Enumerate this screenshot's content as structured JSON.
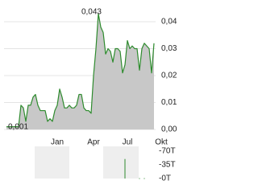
{
  "chart_data": [
    {
      "type": "line",
      "categories": [
        null,
        null,
        null,
        null,
        null,
        null,
        null,
        null,
        null,
        null,
        null,
        null,
        null,
        null,
        null,
        null,
        null,
        null,
        null,
        null,
        null,
        "Jan",
        null,
        null,
        null,
        null,
        null,
        null,
        null,
        null,
        null,
        null,
        null,
        null,
        null,
        null,
        "Apr",
        null,
        null,
        null,
        null,
        null,
        null,
        null,
        null,
        null,
        null,
        null,
        null,
        null,
        "Jul",
        null,
        null,
        null,
        null,
        null,
        null,
        null,
        null,
        null,
        null,
        null,
        null,
        null,
        "Okt",
        null
      ],
      "values": [
        0.001,
        0.001,
        0.001,
        0.001,
        0.001,
        0.001,
        0.009,
        0.008,
        0.003,
        0.009,
        0.009,
        0.012,
        0.013,
        0.009,
        0.007,
        0.007,
        0.007,
        0.003,
        0.004,
        0.003,
        0.007,
        0.009,
        0.015,
        0.012,
        0.008,
        0.008,
        0.009,
        0.008,
        0.008,
        0.009,
        0.013,
        0.013,
        0.008,
        0.007,
        0.007,
        0.006,
        0.02,
        0.03,
        0.043,
        0.038,
        0.036,
        0.028,
        0.03,
        0.029,
        0.025,
        0.03,
        0.03,
        0.029,
        0.021,
        0.024,
        0.033,
        0.03,
        0.031,
        0.03,
        0.03,
        0.022,
        0.03,
        0.032,
        0.031,
        0.03,
        0.021,
        0.032,
        null,
        null,
        null,
        null
      ],
      "value_labels": [
        "0,001",
        null,
        null,
        null,
        null,
        null,
        null,
        null,
        null,
        null,
        null,
        null,
        null,
        null,
        null,
        null,
        null,
        null,
        null,
        null,
        null,
        null,
        null,
        null,
        null,
        null,
        null,
        null,
        null,
        null,
        null,
        null,
        null,
        null,
        null,
        null,
        null,
        null,
        "0,043",
        null,
        null,
        null,
        null,
        null,
        null,
        null,
        null,
        null,
        null,
        null,
        null,
        null,
        null,
        null,
        null,
        null,
        null,
        null,
        null,
        null,
        null,
        null,
        null,
        null,
        null,
        null
      ],
      "color": "#2e8b2e",
      "area_color": "#c8c8c8",
      "ylim": [
        0,
        0.045
      ],
      "yticks": [
        {
          "value": 0,
          "label": "0,00"
        },
        {
          "value": 0.01,
          "label": "0,01"
        },
        {
          "value": 0.02,
          "label": "0,02"
        },
        {
          "value": 0.03,
          "label": "0,03"
        },
        {
          "value": 0.04,
          "label": "0,04"
        }
      ],
      "grid": true
    },
    {
      "type": "bar",
      "values": [
        0,
        0,
        0,
        0,
        0,
        0,
        0,
        0,
        0,
        0,
        0,
        0,
        0,
        0,
        0,
        0,
        0,
        0,
        0,
        0,
        0,
        0,
        0,
        0,
        0,
        0,
        0,
        0,
        0,
        0,
        0,
        0,
        0,
        0,
        0,
        0,
        0,
        0,
        0,
        0,
        0,
        0,
        0,
        0,
        0,
        0,
        0,
        0,
        0,
        50000,
        0,
        0,
        0,
        0,
        0,
        1000,
        0,
        1000,
        0,
        0,
        0,
        0,
        null,
        null,
        null,
        null
      ],
      "color": "#2e8b2e",
      "ylim": [
        0,
        70000
      ],
      "yticks": [
        {
          "value": 0,
          "label": "-0T"
        },
        {
          "value": 35000,
          "label": "-35T"
        },
        {
          "value": 70000,
          "label": "-70T"
        }
      ]
    }
  ]
}
